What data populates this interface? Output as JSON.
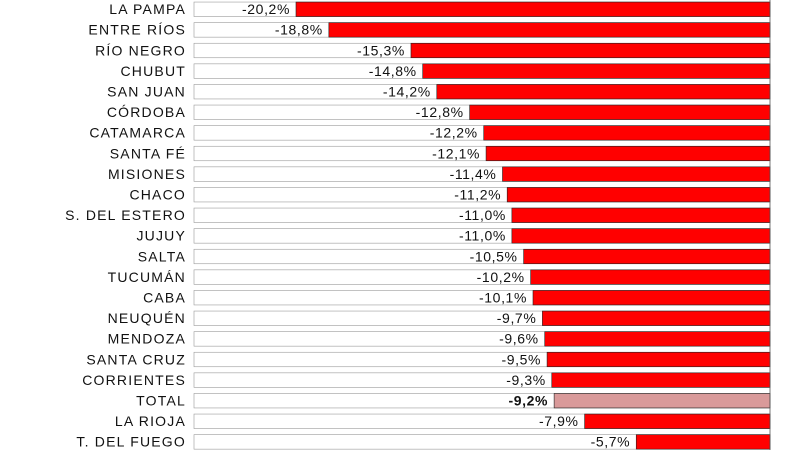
{
  "chart_data": {
    "type": "bar",
    "orientation": "horizontal",
    "categories": [
      "LA PAMPA",
      "ENTRE RÍOS",
      "RÍO NEGRO",
      "CHUBUT",
      "SAN JUAN",
      "CÓRDOBA",
      "CATAMARCA",
      "SANTA FÉ",
      "MISIONES",
      "CHACO",
      "S. DEL ESTERO",
      "JUJUY",
      "SALTA",
      "TUCUMÁN",
      "CABA",
      "NEUQUÉN",
      "MENDOZA",
      "SANTA CRUZ",
      "CORRIENTES",
      "TOTAL",
      "LA RIOJA",
      "T. DEL FUEGO"
    ],
    "values": [
      -20.2,
      -18.8,
      -15.3,
      -14.8,
      -14.2,
      -12.8,
      -12.2,
      -12.1,
      -11.4,
      -11.2,
      -11.0,
      -11.0,
      -10.5,
      -10.2,
      -10.1,
      -9.7,
      -9.6,
      -9.5,
      -9.3,
      -9.2,
      -7.9,
      -5.7
    ],
    "value_labels": [
      "-20,2%",
      "-18,8%",
      "-15,3%",
      "-14,8%",
      "-14,2%",
      "-12,8%",
      "-12,2%",
      "-12,1%",
      "-11,4%",
      "-11,2%",
      "-11,0%",
      "-11,0%",
      "-10,5%",
      "-10,2%",
      "-10,1%",
      "-9,7%",
      "-9,6%",
      "-9,5%",
      "-9,3%",
      "-9,2%",
      "-7,9%",
      "-5,7%"
    ],
    "highlight_category": "TOTAL",
    "colors": {
      "bar": "#ff0000",
      "highlight": "#d99a9a",
      "outline": "#222222"
    },
    "xlim": [
      -20.2,
      0
    ],
    "grid": false,
    "legend": "none"
  }
}
